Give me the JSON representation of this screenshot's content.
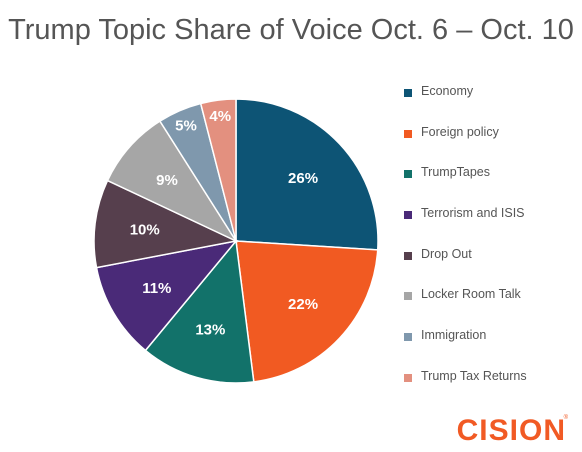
{
  "title": "Trump Topic Share of Voice Oct. 6 – Oct. 10",
  "brand": {
    "name": "CISION",
    "mark": "®",
    "color": "#f15a24"
  },
  "chart_data": {
    "type": "pie",
    "title": "Trump Topic Share of Voice Oct. 6 – Oct. 10",
    "categories": [
      "Economy",
      "Foreign policy",
      "TrumpTapes",
      "Terrorism and ISIS",
      "Drop Out",
      "Locker Room Talk",
      "Immigration",
      "Trump Tax Returns"
    ],
    "values": [
      26,
      22,
      13,
      11,
      10,
      9,
      5,
      4
    ],
    "labels": [
      "26%",
      "22%",
      "13%",
      "11%",
      "10%",
      "9%",
      "5%",
      "4%"
    ],
    "colors": [
      "#0d5475",
      "#f15a22",
      "#12726a",
      "#4a2a78",
      "#563f4d",
      "#a6a6a6",
      "#7f98ad",
      "#e3907f"
    ],
    "legend_position": "right"
  }
}
